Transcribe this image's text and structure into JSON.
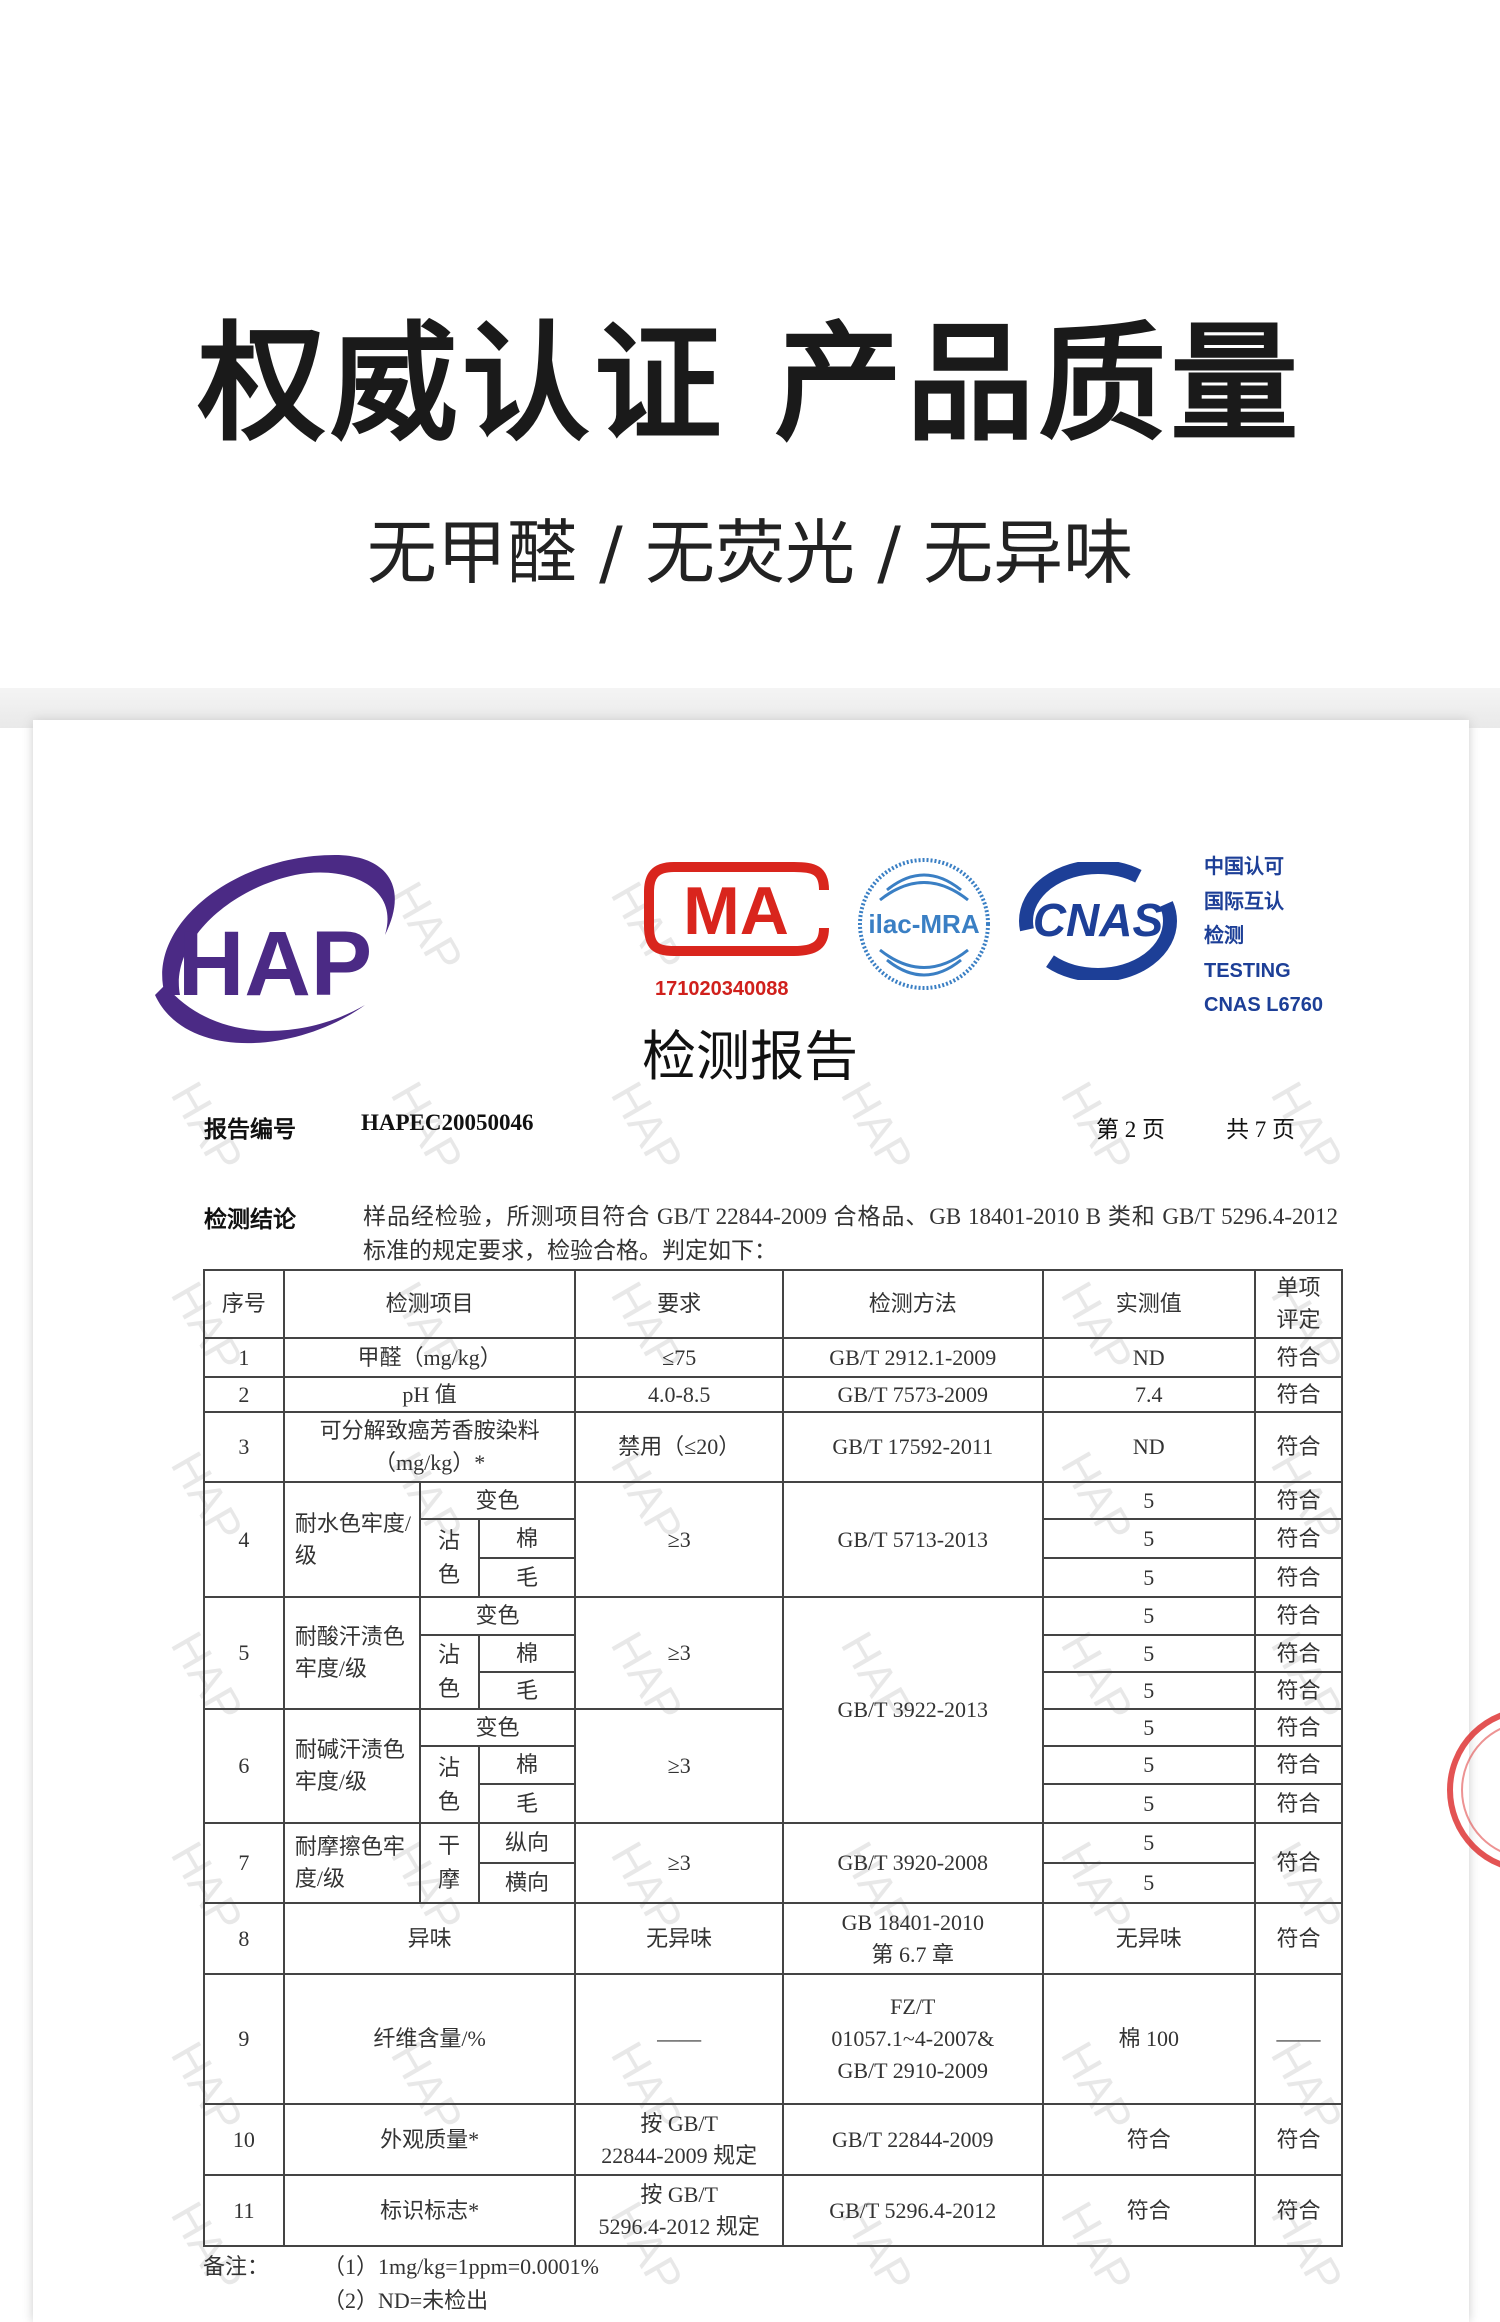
{
  "header": {
    "title": "权威认证 产品质量",
    "subtitle": "无甲醛 / 无荧光 / 无异味"
  },
  "logos": {
    "hap": "HAP",
    "cma": "MA",
    "cma_number": "171020340088",
    "ilac": "ilac-MRA",
    "cnas": "CNAS",
    "cnas_text": [
      "中国认可",
      "国际互认",
      "检测",
      "TESTING",
      "CNAS L6760"
    ],
    "colors": {
      "hap": "#4b2a85",
      "cma": "#d9251d",
      "ilac": "#3a7fc4",
      "cnas": "#1d3f97"
    }
  },
  "watermark": "HAP",
  "report": {
    "title": "检测报告",
    "number_label": "报告编号",
    "number": "HAPEC20050046",
    "page": "第 2 页",
    "total": "共 7 页",
    "conclusion_label": "检测结论",
    "conclusion": "样品经检验，所测项目符合 GB/T 22844-2009 合格品、GB 18401-2010 B 类和 GB/T 5296.4-2012 标准的规定要求，检验合格。判定如下："
  },
  "table": {
    "headers": {
      "no": "序号",
      "item": "检测项目",
      "req": "要求",
      "method": "检测方法",
      "value": "实测值",
      "verdict": "单项评定"
    },
    "sub": {
      "change": "变色",
      "stain": "沾色",
      "cotton": "棉",
      "wool": "毛",
      "dry": "干摩",
      "long": "纵向",
      "trans": "横向"
    },
    "rows": [
      {
        "no": "1",
        "item": "甲醛（mg/kg）",
        "req": "≤75",
        "method": "GB/T 2912.1-2009",
        "value": "ND",
        "verdict": "符合"
      },
      {
        "no": "2",
        "item": "pH 值",
        "req": "4.0-8.5",
        "method": "GB/T 7573-2009",
        "value": "7.4",
        "verdict": "符合"
      },
      {
        "no": "3",
        "item": "可分解致癌芳香胺染料",
        "item2": "（mg/kg）*",
        "req": "禁用（≤20）",
        "method": "GB/T 17592-2011",
        "value": "ND",
        "verdict": "符合"
      },
      {
        "no": "4",
        "item": "耐水色牢度/级",
        "req": "≥3",
        "method": "GB/T 5713-2013",
        "values": [
          "5",
          "5",
          "5"
        ],
        "verdicts": [
          "符合",
          "符合",
          "符合"
        ]
      },
      {
        "no": "5",
        "item": "耐酸汗渍色牢度/级",
        "req": "≥3",
        "method": "GB/T 3922-2013",
        "values": [
          "5",
          "5",
          "5"
        ],
        "verdicts": [
          "符合",
          "符合",
          "符合"
        ]
      },
      {
        "no": "6",
        "item": "耐碱汗渍色牢度/级",
        "req": "≥3",
        "values": [
          "5",
          "5",
          "5"
        ],
        "verdicts": [
          "符合",
          "符合",
          "符合"
        ]
      },
      {
        "no": "7",
        "item": "耐摩擦色牢度/级",
        "req": "≥3",
        "method": "GB/T 3920-2008",
        "values": [
          "5",
          "5"
        ],
        "verdict": "符合"
      },
      {
        "no": "8",
        "item": "异味",
        "req": "无异味",
        "method": "GB 18401-2010",
        "method2": "第 6.7 章",
        "value": "无异味",
        "verdict": "符合"
      },
      {
        "no": "9",
        "item": "纤维含量/%",
        "req": "——",
        "method": "FZ/T",
        "method2": "01057.1~4-2007&",
        "method3": "GB/T 2910-2009",
        "value": "棉 100",
        "verdict": "——"
      },
      {
        "no": "10",
        "item": "外观质量*",
        "req": "按 GB/T",
        "req2": "22844-2009 规定",
        "method": "GB/T 22844-2009",
        "value": "符合",
        "verdict": "符合"
      },
      {
        "no": "11",
        "item": "标识标志*",
        "req": "按 GB/T",
        "req2": "5296.4-2012 规定",
        "method": "GB/T 5296.4-2012",
        "value": "符合",
        "verdict": "符合"
      }
    ]
  },
  "notes": {
    "label": "备注：",
    "items": [
      "（1）1mg/kg=1ppm=0.0001%",
      "（2）ND=未检出"
    ]
  }
}
